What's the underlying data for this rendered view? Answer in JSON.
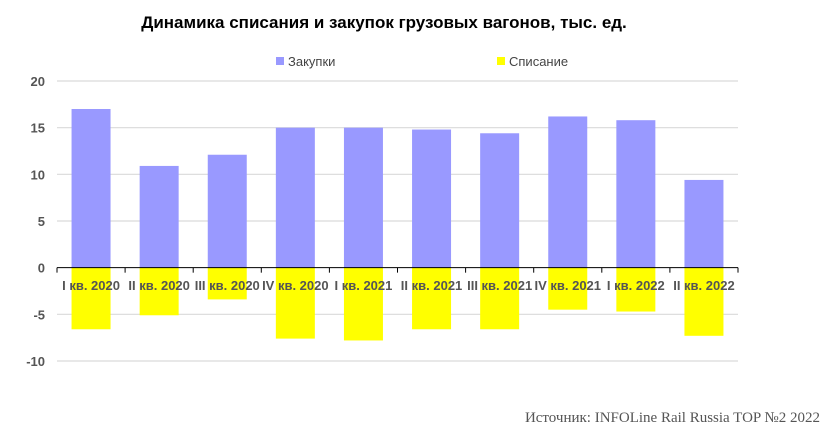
{
  "chart_data": {
    "type": "bar",
    "title": "Динамика списания и закупок грузовых вагонов, тыс. ед.",
    "categories": [
      "I кв. 2020",
      "II кв. 2020",
      "III кв. 2020",
      "IV кв. 2020",
      "I кв. 2021",
      "II кв. 2021",
      "III кв. 2021",
      "IV кв. 2021",
      "I кв. 2022",
      "II кв. 2022"
    ],
    "series": [
      {
        "name": "Закупки",
        "color": "#9999ff",
        "values": [
          17.0,
          10.9,
          12.1,
          15.0,
          15.0,
          14.8,
          14.4,
          16.2,
          15.8,
          9.4
        ]
      },
      {
        "name": "Списание",
        "color": "#ffff00",
        "values": [
          -6.6,
          -5.1,
          -3.4,
          -7.6,
          -7.8,
          -6.6,
          -6.6,
          -4.5,
          -4.7,
          -7.3
        ]
      }
    ],
    "ylim": [
      -10,
      20
    ],
    "yticks": [
      20,
      15,
      10,
      5,
      0,
      -5,
      -10
    ],
    "grid": true,
    "legend_position": "top"
  },
  "source": "Источник: INFOLine Rail Russia TOP №2 2022"
}
